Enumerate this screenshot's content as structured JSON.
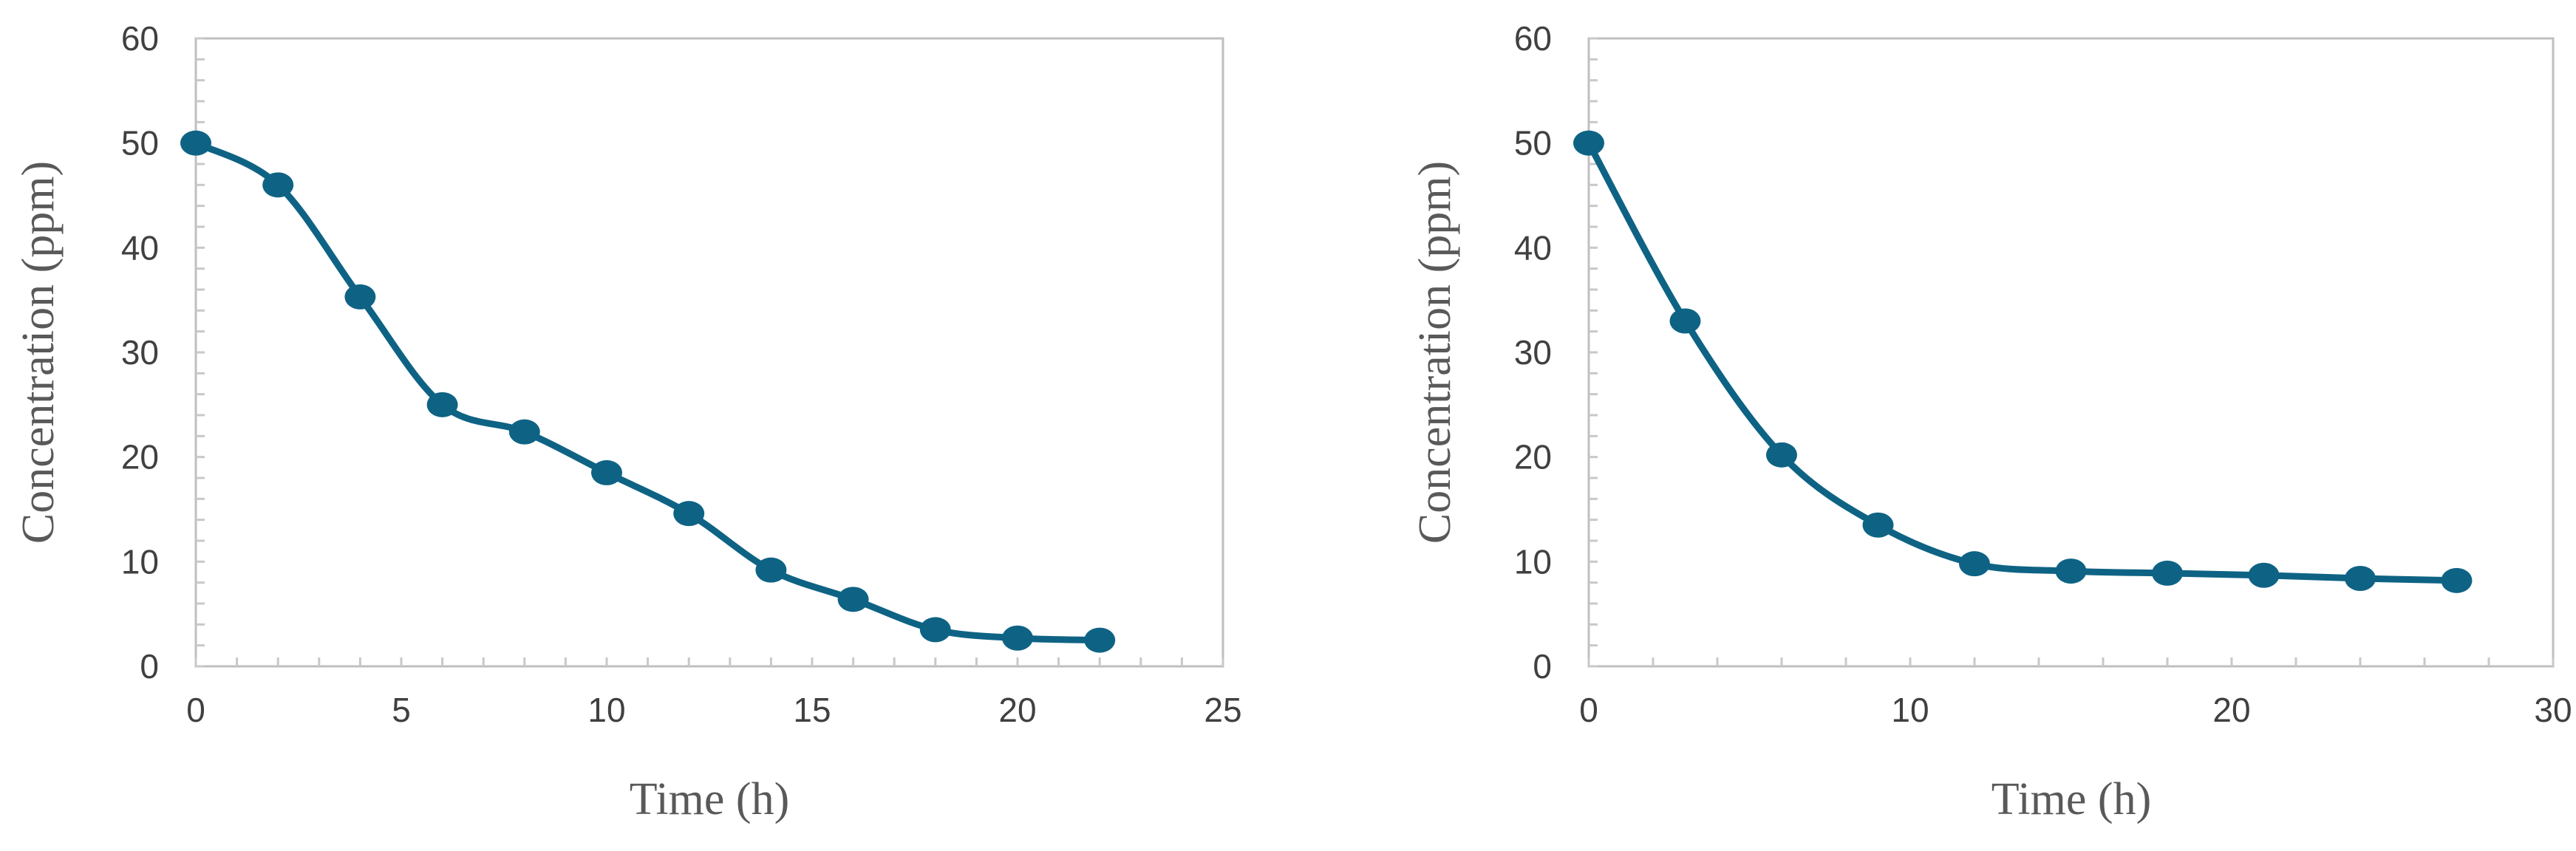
{
  "chart_data": [
    {
      "type": "line",
      "title": "",
      "xlabel": "Time (h)",
      "ylabel": "Concentration (ppm)",
      "xlim": [
        0,
        25
      ],
      "ylim": [
        0,
        60
      ],
      "xticks": [
        0,
        5,
        10,
        15,
        20,
        25
      ],
      "yticks": [
        0,
        10,
        20,
        30,
        40,
        50,
        60
      ],
      "grid": false,
      "legend": "none",
      "smooth": true,
      "color": "#0e6384",
      "series": [
        {
          "x": [
            0,
            2,
            4,
            6,
            8,
            10,
            12,
            14,
            16,
            18,
            20,
            22
          ],
          "values": [
            50,
            46,
            35.3,
            25,
            22.4,
            18.5,
            14.6,
            9.2,
            6.4,
            3.5,
            2.7,
            2.5
          ]
        }
      ]
    },
    {
      "type": "line",
      "title": "",
      "xlabel": "Time (h)",
      "ylabel": "Concentration (ppm)",
      "xlim": [
        0,
        30
      ],
      "ylim": [
        0,
        60
      ],
      "xticks": [
        0,
        10,
        20,
        30
      ],
      "yticks": [
        0,
        10,
        20,
        30,
        40,
        50,
        60
      ],
      "grid": false,
      "legend": "none",
      "smooth": true,
      "color": "#0e6384",
      "series": [
        {
          "x": [
            0,
            3,
            6,
            9,
            12,
            15,
            18,
            21,
            24,
            27
          ],
          "values": [
            50,
            33,
            20.2,
            13.5,
            9.8,
            9.1,
            8.9,
            8.7,
            8.4,
            8.2
          ]
        }
      ]
    }
  ]
}
